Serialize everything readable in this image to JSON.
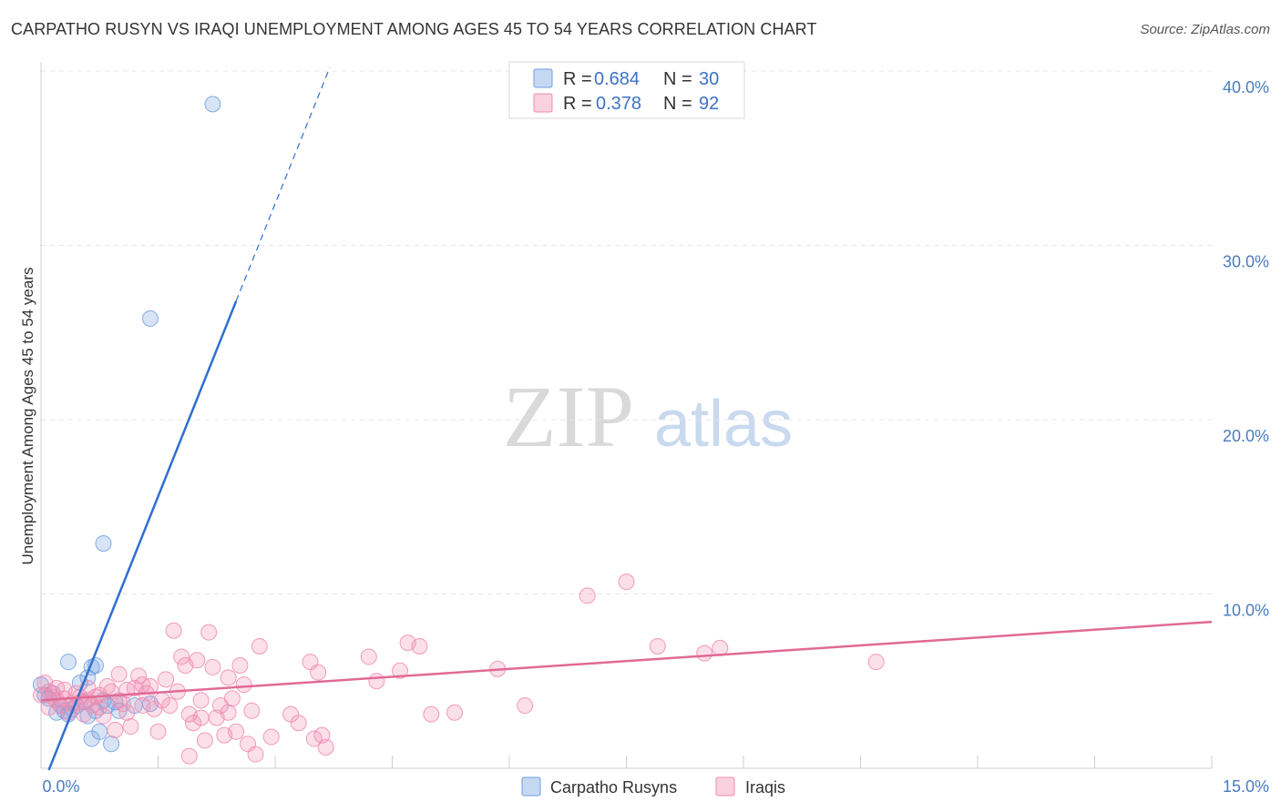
{
  "chart_data": {
    "type": "scatter",
    "title": "CARPATHO RUSYN VS IRAQI UNEMPLOYMENT AMONG AGES 45 TO 54 YEARS CORRELATION CHART",
    "source": "Source: ZipAtlas.com",
    "ylabel": "Unemployment Among Ages 45 to 54 years",
    "xlabel": "",
    "xlim": [
      0,
      15
    ],
    "ylim": [
      0,
      40
    ],
    "x_tick_labels": [
      "0.0%",
      "15.0%"
    ],
    "y_tick_labels": [
      "10.0%",
      "20.0%",
      "30.0%",
      "40.0%"
    ],
    "y_ticks": [
      10,
      20,
      30,
      40
    ],
    "watermark": {
      "zip": "ZIP",
      "atlas": "atlas"
    },
    "legend": {
      "r_label": "R =",
      "n_label": "N =",
      "entries": [
        {
          "r": "0.684",
          "n": "30"
        },
        {
          "r": "0.378",
          "n": "92"
        }
      ]
    },
    "series": [
      {
        "name": "Carpatho Rusyns",
        "color": "#6f9fe0",
        "line_color": "#2f6fcf",
        "trend": {
          "x0": 0.1,
          "y0": -0.1,
          "x1": 2.5,
          "y1": 26.8,
          "dash_to_x": 3.7,
          "dash_to_y": 40.2
        },
        "points": [
          [
            0.0,
            4.8
          ],
          [
            0.05,
            4.2
          ],
          [
            0.1,
            4.0
          ],
          [
            0.15,
            4.3
          ],
          [
            0.2,
            3.2
          ],
          [
            0.25,
            3.6
          ],
          [
            0.3,
            3.3
          ],
          [
            0.35,
            3.1
          ],
          [
            0.4,
            3.4
          ],
          [
            0.35,
            6.1
          ],
          [
            0.45,
            3.6
          ],
          [
            0.5,
            4.9
          ],
          [
            0.55,
            3.8
          ],
          [
            0.6,
            3.0
          ],
          [
            0.6,
            5.2
          ],
          [
            0.65,
            5.8
          ],
          [
            0.7,
            5.9
          ],
          [
            0.65,
            1.7
          ],
          [
            0.7,
            3.3
          ],
          [
            0.75,
            2.1
          ],
          [
            0.8,
            3.9
          ],
          [
            0.85,
            3.6
          ],
          [
            0.8,
            12.9
          ],
          [
            0.9,
            1.4
          ],
          [
            0.95,
            3.8
          ],
          [
            1.0,
            3.3
          ],
          [
            1.2,
            3.6
          ],
          [
            1.4,
            3.7
          ],
          [
            1.4,
            25.8
          ],
          [
            2.2,
            38.1
          ]
        ]
      },
      {
        "name": "Iraqis",
        "color": "#f08cb0",
        "line_color": "#e06a95",
        "trend": {
          "x0": 0.0,
          "y0": 3.9,
          "x1": 15.0,
          "y1": 8.4
        },
        "points": [
          [
            0.05,
            4.9
          ],
          [
            0.1,
            4.4
          ],
          [
            0.15,
            4.1
          ],
          [
            0.2,
            4.6
          ],
          [
            0.25,
            3.6
          ],
          [
            0.3,
            4.0
          ],
          [
            0.35,
            3.2
          ],
          [
            0.4,
            3.7
          ],
          [
            0.45,
            4.3
          ],
          [
            0.5,
            3.8
          ],
          [
            0.55,
            3.1
          ],
          [
            0.6,
            3.9
          ],
          [
            0.65,
            3.6
          ],
          [
            0.7,
            4.1
          ],
          [
            0.75,
            3.5
          ],
          [
            0.8,
            3.0
          ],
          [
            0.85,
            4.7
          ],
          [
            0.9,
            4.4
          ],
          [
            0.95,
            2.2
          ],
          [
            1.0,
            3.9
          ],
          [
            1.05,
            3.7
          ],
          [
            1.1,
            3.2
          ],
          [
            1.15,
            2.4
          ],
          [
            1.2,
            4.6
          ],
          [
            1.25,
            5.3
          ],
          [
            1.3,
            3.6
          ],
          [
            1.35,
            4.3
          ],
          [
            1.4,
            4.7
          ],
          [
            1.45,
            3.4
          ],
          [
            1.5,
            2.1
          ],
          [
            1.55,
            3.9
          ],
          [
            1.6,
            5.1
          ],
          [
            1.65,
            3.6
          ],
          [
            1.7,
            7.9
          ],
          [
            1.75,
            4.4
          ],
          [
            1.8,
            6.4
          ],
          [
            1.85,
            5.9
          ],
          [
            1.9,
            3.1
          ],
          [
            1.95,
            2.6
          ],
          [
            2.0,
            6.2
          ],
          [
            2.05,
            3.9
          ],
          [
            2.1,
            1.6
          ],
          [
            2.15,
            7.8
          ],
          [
            2.2,
            5.8
          ],
          [
            2.25,
            2.9
          ],
          [
            2.3,
            3.6
          ],
          [
            2.35,
            1.9
          ],
          [
            2.4,
            5.2
          ],
          [
            2.45,
            4.0
          ],
          [
            2.5,
            2.1
          ],
          [
            2.55,
            5.9
          ],
          [
            2.6,
            4.8
          ],
          [
            2.65,
            1.4
          ],
          [
            2.7,
            3.3
          ],
          [
            2.75,
            0.8
          ],
          [
            2.8,
            7.0
          ],
          [
            2.95,
            1.8
          ],
          [
            3.2,
            3.1
          ],
          [
            3.3,
            2.6
          ],
          [
            3.45,
            6.1
          ],
          [
            3.5,
            1.7
          ],
          [
            3.55,
            5.5
          ],
          [
            3.6,
            1.9
          ],
          [
            3.65,
            1.2
          ],
          [
            4.2,
            6.4
          ],
          [
            4.3,
            5.0
          ],
          [
            4.6,
            5.6
          ],
          [
            4.7,
            7.2
          ],
          [
            4.85,
            7.0
          ],
          [
            5.0,
            3.1
          ],
          [
            5.3,
            3.2
          ],
          [
            5.85,
            5.7
          ],
          [
            6.2,
            3.6
          ],
          [
            7.0,
            9.9
          ],
          [
            7.5,
            10.7
          ],
          [
            7.9,
            7.0
          ],
          [
            8.5,
            6.6
          ],
          [
            8.7,
            6.9
          ],
          [
            10.7,
            6.1
          ],
          [
            0.0,
            4.2
          ],
          [
            0.1,
            3.5
          ],
          [
            0.3,
            4.5
          ],
          [
            0.5,
            4.1
          ],
          [
            0.75,
            4.2
          ],
          [
            1.0,
            5.4
          ],
          [
            1.3,
            4.8
          ],
          [
            1.9,
            0.7
          ],
          [
            2.4,
            3.2
          ],
          [
            0.2,
            3.9
          ],
          [
            0.6,
            4.6
          ],
          [
            1.1,
            4.5
          ],
          [
            2.05,
            2.9
          ]
        ]
      }
    ]
  }
}
